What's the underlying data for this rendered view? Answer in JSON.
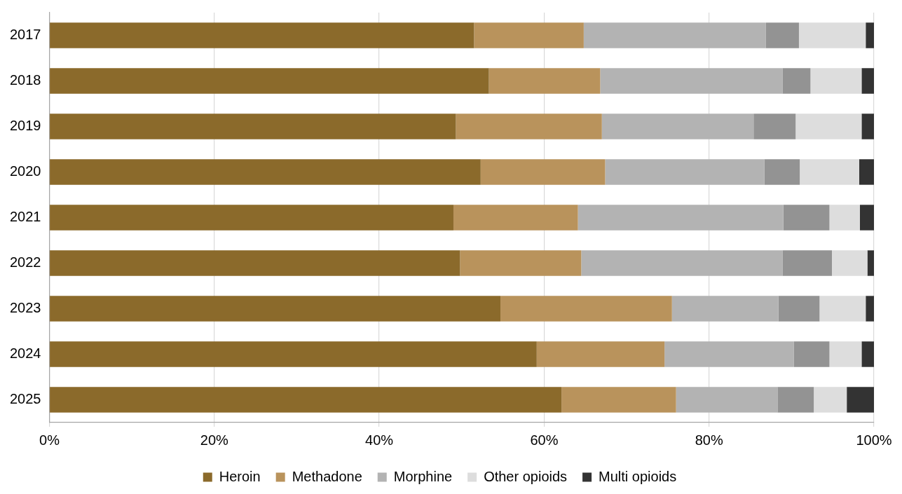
{
  "chart_data": {
    "type": "bar",
    "orientation": "horizontal",
    "stacked": true,
    "categories": [
      "2017",
      "2018",
      "2019",
      "2020",
      "2021",
      "2022",
      "2023",
      "2024",
      "2025"
    ],
    "series": [
      {
        "name": "Heroin",
        "color": "#8b6a2b",
        "values": [
          51.5,
          53.3,
          49.3,
          52.3,
          49.0,
          49.8,
          54.7,
          59.1,
          62.1
        ]
      },
      {
        "name": "Methadone",
        "color": "#b9935c",
        "values": [
          13.3,
          13.5,
          17.7,
          15.1,
          15.1,
          14.7,
          20.8,
          15.5,
          13.9
        ]
      },
      {
        "name": "Morphine",
        "color": "#b3b3b3",
        "values": [
          22.1,
          22.1,
          18.4,
          19.3,
          24.9,
          24.4,
          12.9,
          15.7,
          12.3
        ]
      },
      {
        "color": "#939393",
        "values": [
          4.0,
          3.4,
          5.1,
          4.3,
          5.6,
          6.0,
          5.0,
          4.3,
          4.4
        ]
      },
      {
        "name": "Other opioids",
        "color": "#dddddd",
        "values": [
          8.1,
          6.2,
          8.0,
          7.2,
          3.7,
          4.3,
          5.6,
          3.9,
          4.0
        ]
      },
      {
        "name": "Multi opioids",
        "color": "#333333",
        "values": [
          1.0,
          1.5,
          1.5,
          1.8,
          1.7,
          0.8,
          1.0,
          1.5,
          3.3
        ]
      }
    ],
    "xlim": [
      0,
      100
    ],
    "xticks": [
      {
        "value": 0,
        "label": "0%"
      },
      {
        "value": 20,
        "label": "20%"
      },
      {
        "value": 40,
        "label": "40%"
      },
      {
        "value": 60,
        "label": "60%"
      },
      {
        "value": 80,
        "label": "80%"
      },
      {
        "value": 100,
        "label": "100%"
      }
    ],
    "grid": "x",
    "legend": "bottom"
  }
}
